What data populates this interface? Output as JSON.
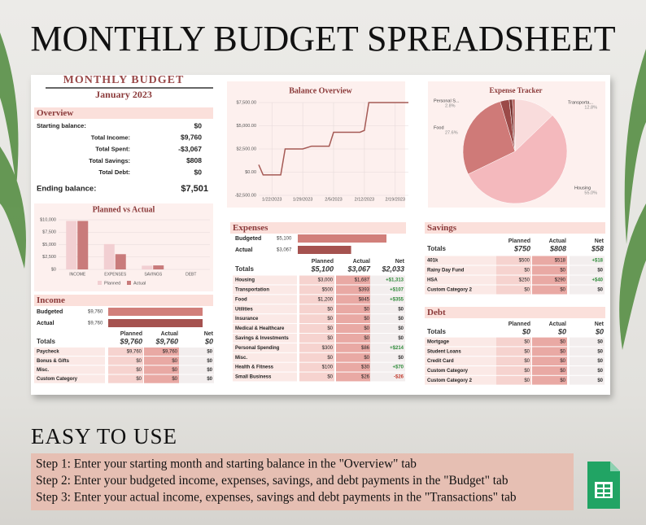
{
  "title": "MONTHLY BUDGET SPREADSHEET",
  "overview": {
    "heading": "MONTHLY BUDGET",
    "month": "January 2023",
    "section": "Overview",
    "rows": [
      [
        "Starting balance:",
        "$0"
      ],
      [
        "Total Income:",
        "$9,760"
      ],
      [
        "Total Spent:",
        "-$3,067"
      ],
      [
        "Total Savings:",
        "$808"
      ],
      [
        "Total Debt:",
        "$0"
      ]
    ],
    "ending": [
      "Ending balance:",
      "$7,501"
    ]
  },
  "chart_data": [
    {
      "type": "line",
      "title": "Balance Overview",
      "color": "#a55a55",
      "grid": true,
      "x": [
        "1/19/2023",
        "1/20/2023",
        "1/24/2023",
        "1/25/2023",
        "1/29/2023",
        "1/31/2023",
        "2/4/2023",
        "2/5/2023",
        "2/11/2023",
        "2/12/2023",
        "2/13/2023",
        "2/22/2023"
      ],
      "values": [
        800,
        -300,
        -300,
        2500,
        2500,
        2800,
        2800,
        4300,
        4300,
        4500,
        7500,
        7501
      ],
      "xticks": [
        "1/22/2023",
        "1/29/2023",
        "2/5/2023",
        "2/12/2023",
        "2/19/2023"
      ],
      "ylim": [
        -2500,
        7500
      ],
      "yticks": [
        {
          "value": -2500,
          "label": "-$2,500.00"
        },
        {
          "value": 0,
          "label": "$0.00"
        },
        {
          "value": 2500,
          "label": "$2,500.00"
        },
        {
          "value": 5000,
          "label": "$5,000.00"
        },
        {
          "value": 7500,
          "label": "$7,500.00"
        }
      ]
    },
    {
      "type": "bar",
      "title": "Planned vs Actual",
      "grid": true,
      "categories": [
        "INCOME",
        "EXPENSES",
        "SAVINGS",
        "DEBT"
      ],
      "series": [
        {
          "name": "Planned",
          "color": "#f2cfd2",
          "values": [
            9760,
            5100,
            750,
            0
          ]
        },
        {
          "name": "Actual",
          "color": "#c97b7b",
          "values": [
            9760,
            3067,
            808,
            0
          ]
        }
      ],
      "ylim": [
        0,
        10000
      ],
      "yticks": [
        {
          "value": 0,
          "label": "$0"
        },
        {
          "value": 2500,
          "label": "$2,500"
        },
        {
          "value": 5000,
          "label": "$5,000"
        },
        {
          "value": 7500,
          "label": "$7,500"
        },
        {
          "value": 10000,
          "label": "$10,000"
        }
      ]
    },
    {
      "type": "pie",
      "title": "Expense Tracker",
      "categories": [
        "Transporta...",
        "Housing",
        "Food",
        "Personal S...",
        null,
        null
      ],
      "values": [
        12.8,
        55.0,
        27.6,
        2.8,
        1.0,
        0.8
      ],
      "value_labels": [
        "12.8%",
        "55.0%",
        "27.6%",
        "2.8%",
        null,
        null
      ],
      "colors": [
        "#f9dcdc",
        "#f4b9bd",
        "#cf7a78",
        "#9b4a48",
        "#7a3533",
        "#b55f5c"
      ]
    }
  ],
  "income": {
    "section": "Income",
    "bars": {
      "labels": [
        "Budgeted",
        "Actual"
      ],
      "values": [
        9760,
        9760
      ],
      "value_labels": [
        "$9,760",
        "$9,760"
      ]
    },
    "columns": [
      "Planned",
      "Actual",
      "Net"
    ],
    "totals": [
      "Totals",
      "$9,760",
      "$9,760",
      "$0"
    ],
    "rows": [
      [
        "Paycheck",
        "$9,760",
        "$9,760",
        "$0"
      ],
      [
        "Bonus & Gifts",
        "$0",
        "$0",
        "$0"
      ],
      [
        "Misc.",
        "$0",
        "$0",
        "$0"
      ],
      [
        "Custom Category",
        "$0",
        "$0",
        "$0"
      ]
    ]
  },
  "expenses": {
    "section": "Expenses",
    "bars": {
      "labels": [
        "Budgeted",
        "Actual"
      ],
      "values": [
        5100,
        3067
      ],
      "value_labels": [
        "$5,100",
        "$3,067"
      ]
    },
    "columns": [
      "Planned",
      "Actual",
      "Net"
    ],
    "totals": [
      "Totals",
      "$5,100",
      "$3,067",
      "$2,033"
    ],
    "rows": [
      [
        "Housing",
        "$3,000",
        "$1,687",
        "+$1,313"
      ],
      [
        "Transportation",
        "$500",
        "$393",
        "+$107"
      ],
      [
        "Food",
        "$1,200",
        "$845",
        "+$355"
      ],
      [
        "Utilities",
        "$0",
        "$0",
        "$0"
      ],
      [
        "Insurance",
        "$0",
        "$0",
        "$0"
      ],
      [
        "Medical & Healthcare",
        "$0",
        "$0",
        "$0"
      ],
      [
        "Savings & Investments",
        "$0",
        "$0",
        "$0"
      ],
      [
        "Personal Spending",
        "$300",
        "$86",
        "+$214"
      ],
      [
        "Misc.",
        "$0",
        "$0",
        "$0"
      ],
      [
        "Health & Fitness",
        "$100",
        "$30",
        "+$70"
      ],
      [
        "Small Business",
        "$0",
        "$26",
        "-$26"
      ]
    ]
  },
  "savings": {
    "section": "Savings",
    "columns": [
      "Planned",
      "Actual",
      "Net"
    ],
    "totals": [
      "Totals",
      "$750",
      "$808",
      "$58"
    ],
    "rows": [
      [
        "401k",
        "$500",
        "$518",
        "+$18"
      ],
      [
        "Rainy Day Fund",
        "$0",
        "$0",
        "$0"
      ],
      [
        "HSA",
        "$250",
        "$290",
        "+$40"
      ],
      [
        "Custom Category 2",
        "$0",
        "$0",
        "$0"
      ]
    ]
  },
  "debt": {
    "section": "Debt",
    "columns": [
      "Planned",
      "Actual",
      "Net"
    ],
    "totals": [
      "Totals",
      "$0",
      "$0",
      "$0"
    ],
    "rows": [
      [
        "Mortgage",
        "$0",
        "$0",
        "$0"
      ],
      [
        "Student Loans",
        "$0",
        "$0",
        "$0"
      ],
      [
        "Credit Card",
        "$0",
        "$0",
        "$0"
      ],
      [
        "Custom Category",
        "$0",
        "$0",
        "$0"
      ],
      [
        "Custom Category 2",
        "$0",
        "$0",
        "$0"
      ]
    ]
  },
  "footer": {
    "heading": "EASY TO USE",
    "steps": [
      "Step 1: Enter your starting month and starting balance in the \"Overview\" tab",
      "Step 2: Enter your budgeted income, expenses, savings, and debt payments in the \"Budget\" tab",
      "Step 3: Enter your actual income, expenses, savings and debt payments in the \"Transactions\" tab"
    ]
  }
}
